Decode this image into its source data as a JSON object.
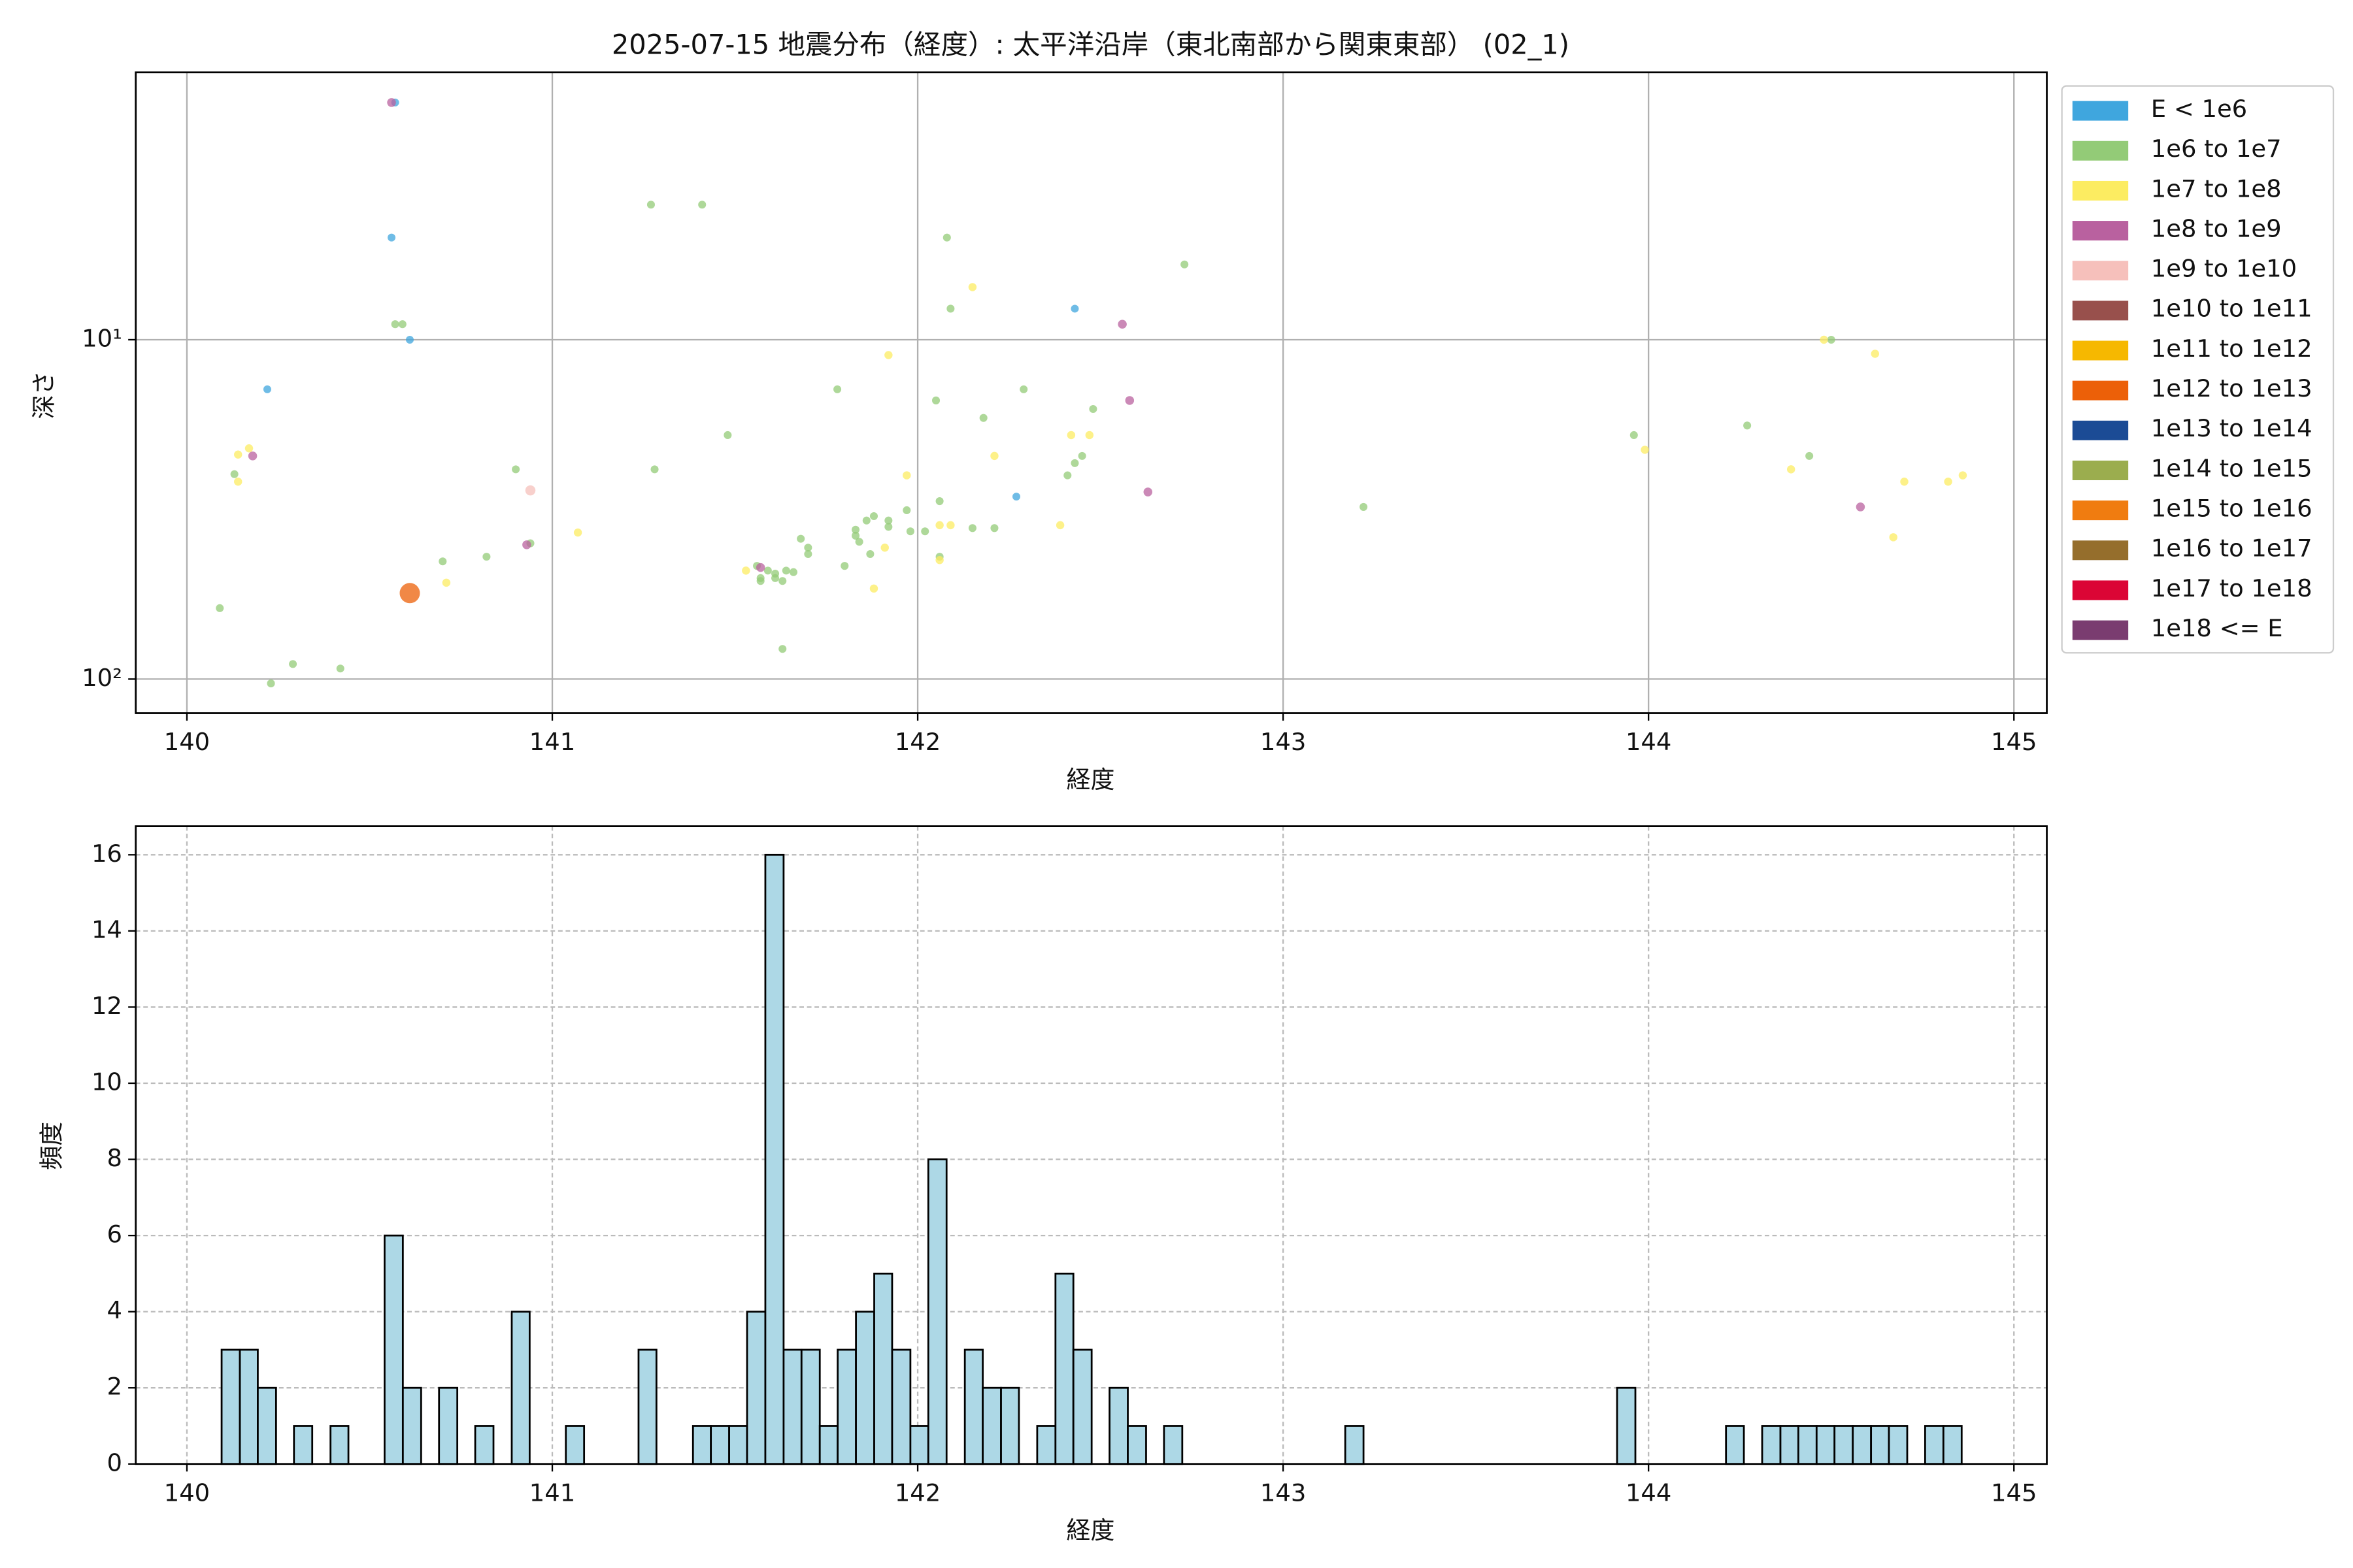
{
  "chart_data": [
    {
      "type": "scatter",
      "title": "2025-07-15 地震分布（経度）: 太平洋沿岸（東北南部から関東東部） (02_1)",
      "xlabel": "経度",
      "ylabel": "深さ",
      "xlim": [
        139.86,
        145.09
      ],
      "xticks": [
        140,
        141,
        142,
        143,
        144,
        145
      ],
      "ylim": [
        1.63,
        126
      ],
      "log_y": true,
      "y_inverted": true,
      "yticks": [
        {
          "value": 10,
          "label": "10¹"
        },
        {
          "value": 100,
          "label": "10²"
        }
      ],
      "grid": true,
      "grid_style": "solid",
      "legend": "outside right",
      "series": [
        {
          "name": "E < 1e6",
          "color": "#3fa6de",
          "x": [
            140.57,
            140.56,
            140.61,
            140.22,
            142.27,
            142.43
          ],
          "values": [
            2.0,
            5.0,
            10,
            14.0,
            29.0,
            8.1
          ]
        },
        {
          "name": "1e6 to 1e7",
          "color": "#93cb77",
          "x": [
            140.59,
            140.57,
            140.09,
            140.13,
            140.23,
            140.29,
            140.42,
            140.7,
            140.82,
            140.9,
            140.94,
            141.27,
            141.41,
            141.28,
            141.48,
            141.57,
            141.63,
            141.57,
            141.59,
            141.61,
            141.64,
            141.66,
            141.68,
            141.7,
            141.7,
            141.56,
            141.61,
            141.63,
            141.78,
            141.83,
            141.83,
            141.84,
            141.86,
            141.88,
            141.87,
            141.92,
            141.92,
            141.97,
            141.98,
            142.02,
            142.05,
            142.06,
            142.08,
            142.09,
            142.06,
            142.15,
            142.18,
            142.21,
            142.29,
            142.41,
            142.43,
            142.45,
            142.48,
            142.73,
            143.22,
            143.96,
            144.27,
            144.44,
            144.5,
            141.8
          ],
          "values": [
            9.0,
            9.0,
            61.8,
            24.9,
            103,
            90.3,
            93.1,
            45.0,
            43.6,
            24.1,
            39.8,
            4.0,
            4.0,
            24.1,
            19.1,
            51.4,
            81.5,
            50.4,
            47.9,
            48.9,
            47.9,
            48.4,
            38.6,
            41.0,
            42.8,
            46.4,
            50.4,
            51.4,
            14.0,
            36.3,
            37.8,
            39.4,
            34.1,
            33.1,
            42.8,
            34.1,
            35.6,
            31.8,
            36.7,
            36.7,
            15.1,
            29.9,
            5.0,
            8.1,
            43.6,
            35.9,
            17.0,
            35.9,
            14.0,
            25.1,
            23.1,
            22.0,
            16.0,
            6.0,
            31.1,
            19.1,
            17.9,
            22.0,
            10,
            46.4
          ]
        },
        {
          "name": "1e7 to 1e8",
          "color": "#fcec61",
          "x": [
            140.14,
            140.17,
            140.14,
            140.71,
            141.07,
            141.53,
            141.88,
            141.91,
            141.92,
            141.97,
            142.06,
            142.09,
            142.06,
            142.15,
            142.21,
            142.39,
            142.42,
            142.47,
            143.99,
            144.39,
            144.48,
            144.62,
            144.67,
            144.7,
            144.82,
            144.86
          ],
          "values": [
            21.8,
            20.9,
            26.2,
            52.0,
            37.0,
            47.9,
            54.1,
            41.0,
            11.1,
            25.1,
            35.2,
            35.2,
            44.6,
            7.0,
            22.0,
            35.2,
            19.1,
            19.1,
            21.1,
            24.1,
            10,
            11.0,
            38.2,
            26.2,
            26.2,
            25.1
          ]
        },
        {
          "name": "1e8 to 1e9",
          "color": "#b9619f",
          "x": [
            140.56,
            140.18,
            140.93,
            141.57,
            142.56,
            142.58,
            142.63,
            144.58
          ],
          "values": [
            2.0,
            22.0,
            40.2,
            46.9,
            9.0,
            15.1,
            28.1,
            31.1
          ]
        },
        {
          "name": "1e9 to 1e10",
          "color": "#f6c0bb",
          "x": [
            140.94
          ],
          "values": [
            27.8
          ]
        },
        {
          "name": "1e10 to 1e11",
          "color": "#98504c",
          "x": [],
          "values": []
        },
        {
          "name": "1e11 to 1e12",
          "color": "#f6b800",
          "x": [],
          "values": []
        },
        {
          "name": "1e12 to 1e13",
          "color": "#ec6008",
          "x": [
            140.61
          ],
          "values": [
            55.8
          ]
        },
        {
          "name": "1e13 to 1e14",
          "color": "#1b4b95",
          "x": [],
          "values": []
        },
        {
          "name": "1e14 to 1e15",
          "color": "#9bad4e",
          "x": [],
          "values": []
        },
        {
          "name": "1e15 to 1e16",
          "color": "#f07c10",
          "x": [],
          "values": []
        },
        {
          "name": "1e16 to 1e17",
          "color": "#956e2c",
          "x": [],
          "values": []
        },
        {
          "name": "1e17 to 1e18",
          "color": "#db0535",
          "x": [],
          "values": []
        },
        {
          "name": "1e18 <= E",
          "color": "#7a3c70",
          "x": [],
          "values": []
        }
      ]
    },
    {
      "type": "histogram",
      "xlabel": "経度",
      "ylabel": "頻度",
      "xlim": [
        139.86,
        145.09
      ],
      "xticks": [
        140,
        141,
        142,
        143,
        144,
        145
      ],
      "ylim": [
        0,
        16.75
      ],
      "yticks": [
        0,
        2,
        4,
        6,
        8,
        10,
        12,
        14,
        16
      ],
      "grid": true,
      "grid_style": "dashed",
      "color": "#add8e6",
      "edgecolor": "#000000",
      "bins": [
        140.095,
        140.145,
        140.194,
        140.244,
        140.293,
        140.343,
        140.393,
        140.442,
        140.492,
        140.541,
        140.591,
        140.641,
        140.69,
        140.74,
        140.789,
        140.839,
        140.889,
        140.938,
        140.988,
        141.037,
        141.087,
        141.137,
        141.186,
        141.236,
        141.285,
        141.335,
        141.385,
        141.434,
        141.484,
        141.533,
        141.583,
        141.633,
        141.682,
        141.732,
        141.781,
        141.831,
        141.881,
        141.93,
        141.98,
        142.029,
        142.079,
        142.129,
        142.178,
        142.228,
        142.277,
        142.327,
        142.377,
        142.426,
        142.476,
        142.525,
        142.575,
        142.625,
        142.674,
        142.724,
        142.773,
        142.823,
        142.873,
        142.922,
        142.972,
        143.021,
        143.071,
        143.121,
        143.17,
        143.22,
        143.269,
        143.319,
        143.369,
        143.418,
        143.468,
        143.517,
        143.567,
        143.617,
        143.666,
        143.716,
        143.765,
        143.815,
        143.865,
        143.914,
        143.964,
        144.013,
        144.063,
        144.113,
        144.162,
        144.212,
        144.261,
        144.311,
        144.361,
        144.41,
        144.46,
        144.509,
        144.559,
        144.609,
        144.658,
        144.708,
        144.757,
        144.807,
        144.857
      ],
      "values": [
        3,
        3,
        2,
        0,
        1,
        0,
        1,
        0,
        0,
        6,
        2,
        0,
        2,
        0,
        1,
        0,
        4,
        0,
        0,
        1,
        0,
        0,
        0,
        3,
        0,
        0,
        1,
        1,
        1,
        4,
        16,
        3,
        3,
        1,
        3,
        4,
        5,
        3,
        1,
        8,
        0,
        3,
        2,
        2,
        0,
        1,
        5,
        3,
        0,
        2,
        1,
        0,
        1,
        0,
        0,
        0,
        0,
        0,
        0,
        0,
        0,
        0,
        1,
        0,
        0,
        0,
        0,
        0,
        0,
        0,
        0,
        0,
        0,
        0,
        0,
        0,
        0,
        2,
        0,
        0,
        0,
        0,
        0,
        1,
        0,
        1,
        1,
        1,
        1,
        1,
        1,
        1,
        1,
        0,
        1,
        1
      ]
    }
  ]
}
